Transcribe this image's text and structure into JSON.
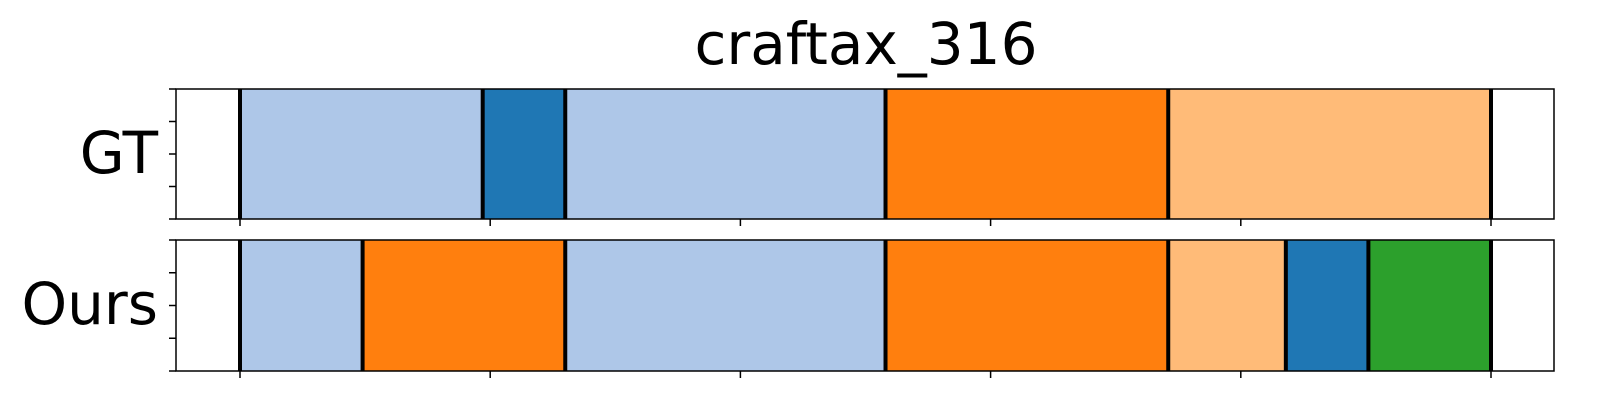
{
  "chart_data": {
    "type": "segmentation-bars",
    "title": "craftax_316",
    "xlim": [
      0,
      500
    ],
    "rows": [
      {
        "label": "GT",
        "segments": [
          {
            "start": 0,
            "end": 97,
            "class": "light-blue"
          },
          {
            "start": 97,
            "end": 130,
            "class": "dark-blue"
          },
          {
            "start": 130,
            "end": 258,
            "class": "light-blue"
          },
          {
            "start": 258,
            "end": 371,
            "class": "orange"
          },
          {
            "start": 371,
            "end": 500,
            "class": "light-orange"
          }
        ]
      },
      {
        "label": "Ours",
        "segments": [
          {
            "start": 0,
            "end": 49,
            "class": "light-blue"
          },
          {
            "start": 49,
            "end": 130,
            "class": "orange"
          },
          {
            "start": 130,
            "end": 258,
            "class": "light-blue"
          },
          {
            "start": 258,
            "end": 371,
            "class": "orange"
          },
          {
            "start": 371,
            "end": 418,
            "class": "light-orange"
          },
          {
            "start": 418,
            "end": 451,
            "class": "dark-blue"
          },
          {
            "start": 451,
            "end": 500,
            "class": "green"
          }
        ]
      }
    ],
    "colors": {
      "light-blue": "#aec7e8",
      "dark-blue": "#1f77b4",
      "orange": "#ff7f0e",
      "light-orange": "#ffbb78",
      "green": "#2ca02c"
    },
    "x_ticks": [
      0,
      100,
      200,
      300,
      400,
      500
    ],
    "y_ticks_per_row": 5,
    "boundary_color": "#000000"
  }
}
